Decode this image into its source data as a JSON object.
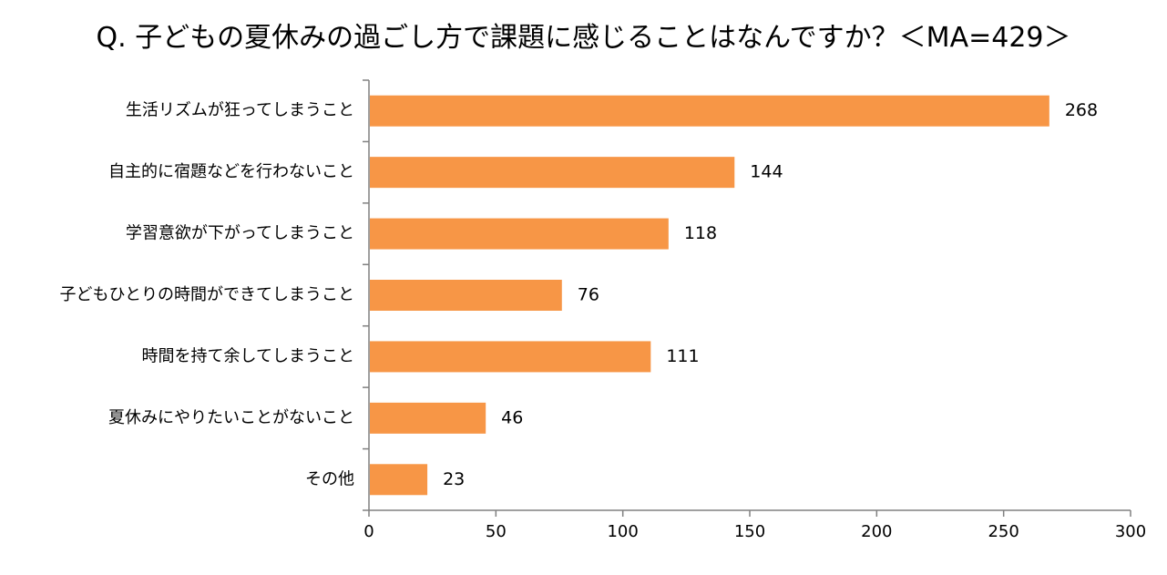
{
  "chart_data": {
    "type": "bar",
    "orientation": "horizontal",
    "title": "Q. 子どもの夏休みの過ごし方で課題に感じることはなんですか？＜MA=429＞",
    "categories": [
      "生活リズムが狂ってしまうこと",
      "自主的に宿題などを行わないこと",
      "学習意欲が下がってしまうこと",
      "子どもひとりの時間ができてしまうこと",
      "時間を持て余してしまうこと",
      "夏休みにやりたいことがないこと",
      "その他"
    ],
    "values": [
      268,
      144,
      118,
      76,
      111,
      46,
      23
    ],
    "xlim": [
      0,
      300
    ],
    "xticks": [
      0,
      50,
      100,
      150,
      200,
      250,
      300
    ],
    "bar_color": "#F79646",
    "axis_color": "#808080",
    "grid": false,
    "legend": false
  }
}
